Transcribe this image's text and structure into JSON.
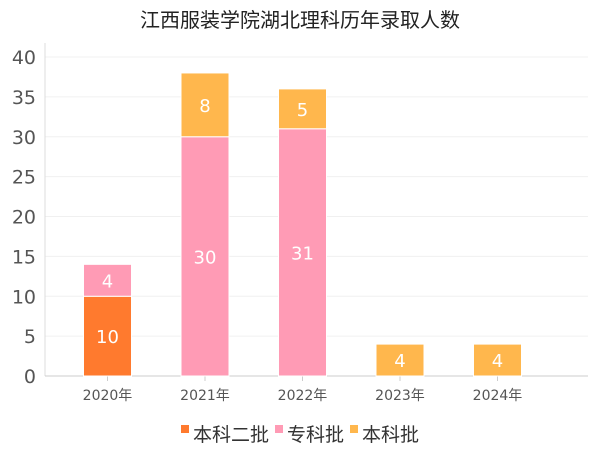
{
  "chart_data": {
    "type": "bar",
    "stacked": true,
    "title": "江西服装学院湖北理科历年录取人数",
    "xlabel": "",
    "ylabel": "",
    "categories": [
      "2020年",
      "2021年",
      "2022年",
      "2023年",
      "2024年"
    ],
    "ylim": [
      0,
      40
    ],
    "yticks": [
      0,
      5,
      10,
      15,
      20,
      25,
      30,
      35,
      40
    ],
    "grid": true,
    "legend_position": "bottom",
    "series": [
      {
        "name": "本科二批",
        "color": "#ff7a2e",
        "values": [
          10,
          0,
          0,
          0,
          0
        ]
      },
      {
        "name": "专科批",
        "color": "#ff9bb5",
        "values": [
          4,
          30,
          31,
          0,
          0
        ]
      },
      {
        "name": "本科批",
        "color": "#ffb74d",
        "values": [
          0,
          8,
          5,
          4,
          4
        ]
      }
    ]
  }
}
